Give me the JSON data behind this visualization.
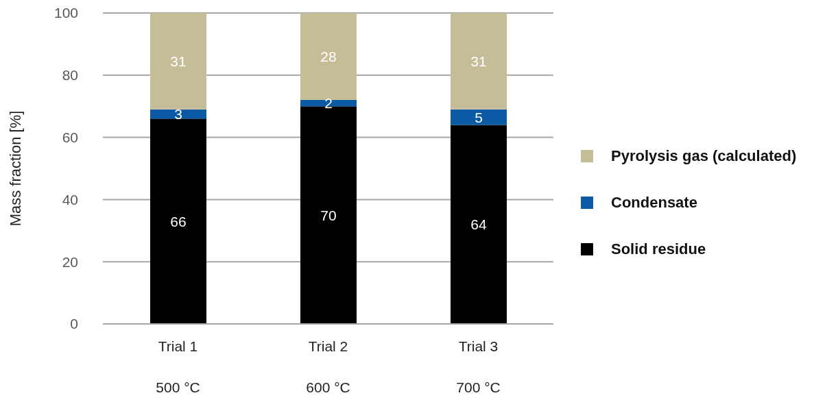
{
  "chart_data": {
    "type": "bar",
    "stacked": true,
    "ylabel": "Mass fraction [%]",
    "categories": [
      "Trial 1\n500 °C",
      "Trial 2\n600 °C",
      "Trial 3\n700 °C"
    ],
    "series": [
      {
        "name": "Solid residue",
        "color": "#000000",
        "values": [
          66,
          70,
          64
        ]
      },
      {
        "name": "Condensate",
        "color": "#0b5aa5",
        "values": [
          3,
          2,
          5
        ]
      },
      {
        "name": "Pyrolysis gas (calculated)",
        "color": "#c4bd97",
        "values": [
          31,
          28,
          31
        ]
      }
    ],
    "ylim": [
      0,
      100
    ],
    "yticks": [
      0,
      20,
      40,
      60,
      80,
      100
    ],
    "grid": "y",
    "legend": "right",
    "data_labels": true
  }
}
